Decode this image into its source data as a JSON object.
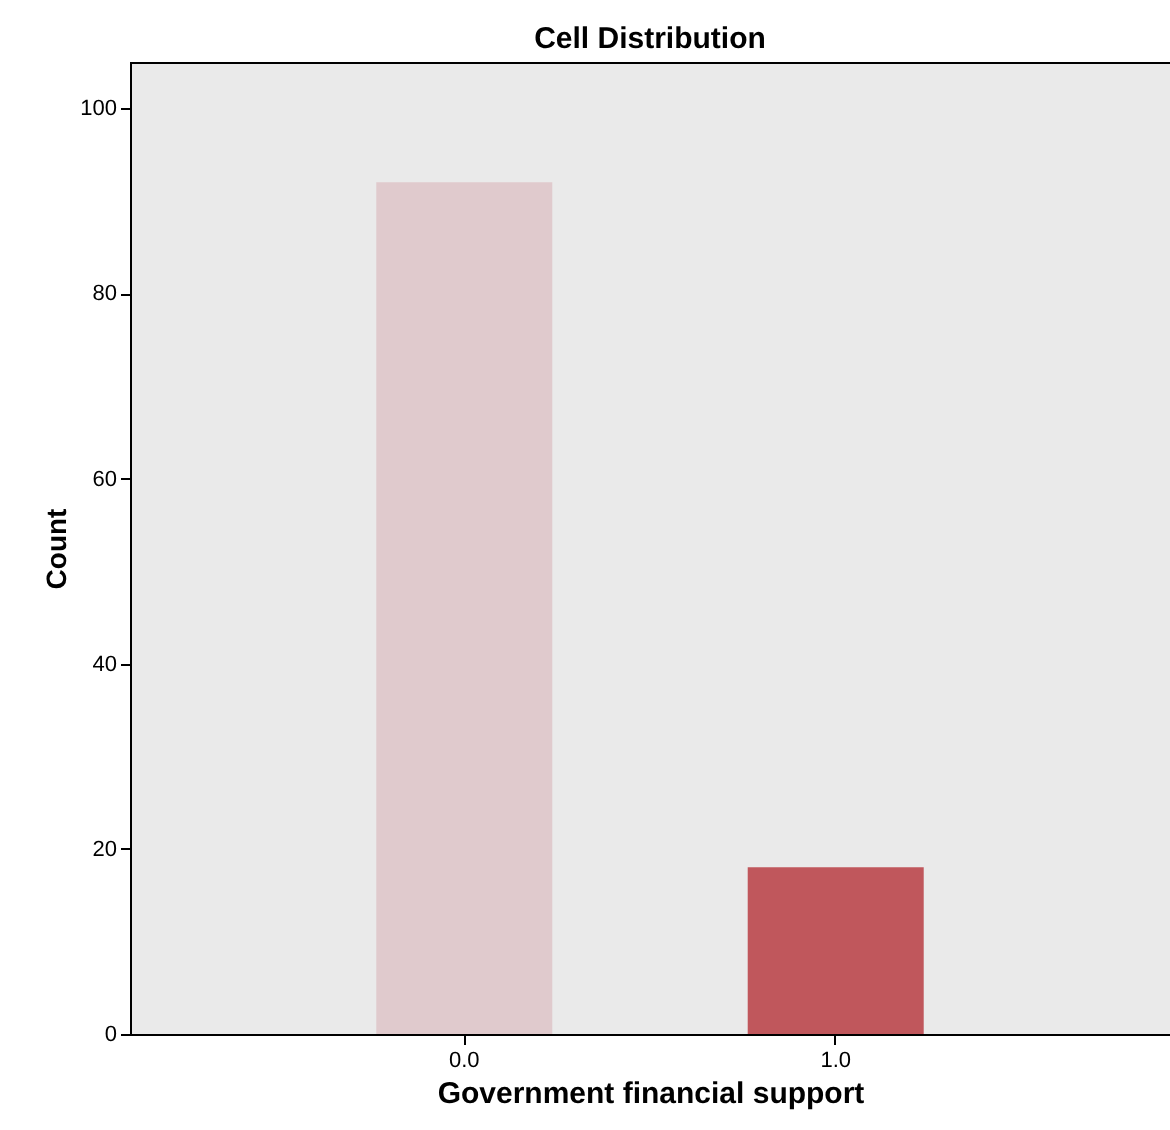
{
  "chart_data": {
    "type": "bar",
    "title": "Cell Distribution",
    "xlabel": "Government financial support",
    "ylabel": "Count",
    "categories": [
      "0.0",
      "1.0"
    ],
    "values": [
      92,
      18
    ],
    "colors": [
      "#e0cacd",
      "#c0575c"
    ],
    "ylim": [
      0,
      105
    ],
    "yticks": [
      0,
      20,
      40,
      60,
      80,
      100
    ],
    "grid": false
  }
}
